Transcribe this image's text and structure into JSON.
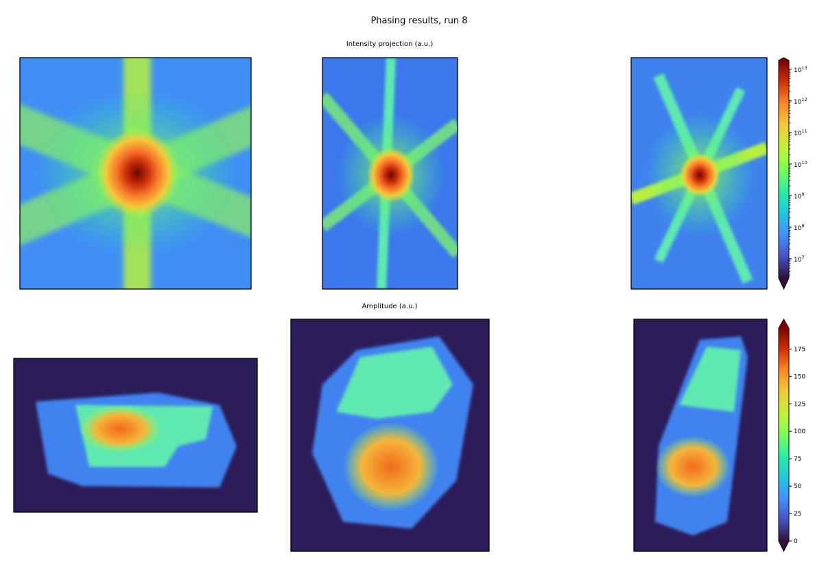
{
  "title": "Phasing results, run 8",
  "chart_data": [
    {
      "type": "image-row",
      "title": "Intensity projection (a.u.)",
      "colorbar": {
        "scale": "log",
        "ylim": [
          2450000,
          19000000000000
        ],
        "yticks": [
          {
            "value": 10000000,
            "label": "10",
            "exponent": "7"
          },
          {
            "value": 100000000,
            "label": "10",
            "exponent": "8"
          },
          {
            "value": 1000000000,
            "label": "10",
            "exponent": "9"
          },
          {
            "value": 10000000000,
            "label": "10",
            "exponent": "10"
          },
          {
            "value": 100000000000,
            "label": "10",
            "exponent": "11"
          },
          {
            "value": 1000000000000,
            "label": "10",
            "exponent": "12"
          },
          {
            "value": 10000000000000,
            "label": "10",
            "exponent": "13"
          }
        ]
      }
    },
    {
      "type": "image-row",
      "title": "Amplitude (a.u.)",
      "colorbar": {
        "scale": "linear",
        "ylim": [
          0,
          194
        ],
        "yticks": [
          0,
          25,
          50,
          75,
          100,
          125,
          150,
          175
        ]
      }
    }
  ]
}
